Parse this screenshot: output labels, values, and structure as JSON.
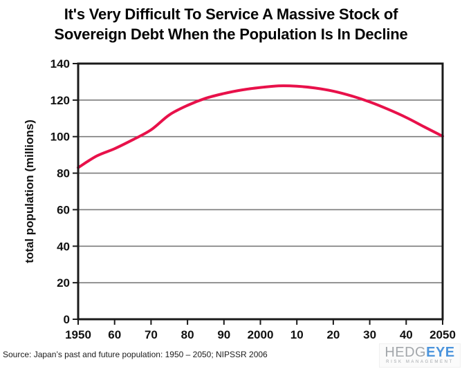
{
  "title": {
    "line1": "It's Very Difficult To Service A Massive Stock of",
    "line2": "Sovereign Debt When the Population Is In Decline"
  },
  "chart_data": {
    "type": "line",
    "title": "It's Very Difficult To Service A Massive Stock of Sovereign Debt When the Population Is In Decline",
    "xlabel": "",
    "ylabel": "total population (millions)",
    "xlim": [
      1950,
      2050
    ],
    "ylim": [
      0,
      140
    ],
    "grid": "horizontal",
    "legend": "none",
    "x": [
      1950,
      1955,
      1960,
      1965,
      1970,
      1975,
      1980,
      1985,
      1990,
      1995,
      2000,
      2005,
      2010,
      2015,
      2020,
      2025,
      2030,
      2035,
      2040,
      2045,
      2050
    ],
    "series": [
      {
        "name": "Japan total population (millions)",
        "values": [
          83,
          89.3,
          93.4,
          98.3,
          103.7,
          111.9,
          117.1,
          121.0,
          123.6,
          125.6,
          126.9,
          127.8,
          127.6,
          126.6,
          124.9,
          122.3,
          119.0,
          115.0,
          110.5,
          105.3,
          100.2
        ]
      }
    ],
    "yticks": [
      0,
      20,
      40,
      60,
      80,
      100,
      120,
      140
    ],
    "xticks": [
      1950,
      1960,
      1970,
      1980,
      1990,
      2000,
      2010,
      2020,
      2030,
      2040,
      2050
    ],
    "xtick_labels": [
      "1950",
      "60",
      "70",
      "80",
      "90",
      "2000",
      "10",
      "20",
      "30",
      "40",
      "2050"
    ],
    "line_color": "#e8114a",
    "gridline_color": "#7a7a7a",
    "axis_color": "#1a1a1a"
  },
  "source": {
    "text": "Source: Japan’s past and future population: 1950 – 2050; NIPSSR 2006"
  },
  "logo": {
    "name_gray": "HEDG",
    "name_blue": "EYE",
    "tagline": "RISK MANAGEMENT",
    "blue": "#4b94dc",
    "gray": "#a3a7ab"
  }
}
